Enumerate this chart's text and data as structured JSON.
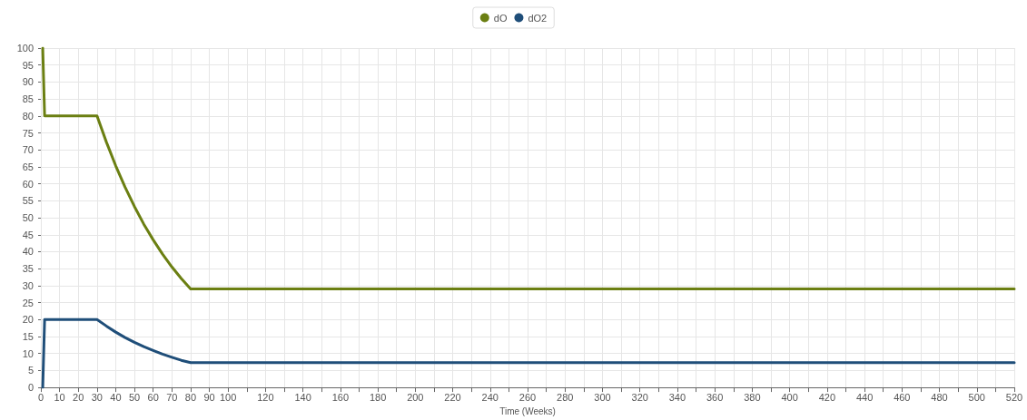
{
  "chart_data": {
    "type": "line",
    "xlabel": "Time (Weeks)",
    "xlim": [
      0,
      520
    ],
    "xticks": [
      0,
      10,
      20,
      30,
      40,
      50,
      60,
      70,
      80,
      90,
      100,
      {
        "value": 110,
        "label": null
      },
      120,
      {
        "value": 130,
        "label": null
      },
      140,
      {
        "value": 150,
        "label": null
      },
      160,
      {
        "value": 170,
        "label": null
      },
      180,
      {
        "value": 190,
        "label": null
      },
      200,
      {
        "value": 210,
        "label": null
      },
      220,
      {
        "value": 230,
        "label": null
      },
      240,
      {
        "value": 250,
        "label": null
      },
      260,
      {
        "value": 270,
        "label": null
      },
      280,
      {
        "value": 290,
        "label": null
      },
      300,
      {
        "value": 310,
        "label": null
      },
      320,
      {
        "value": 330,
        "label": null
      },
      340,
      {
        "value": 350,
        "label": null
      },
      360,
      {
        "value": 370,
        "label": null
      },
      380,
      {
        "value": 390,
        "label": null
      },
      400,
      {
        "value": 410,
        "label": null
      },
      420,
      {
        "value": 430,
        "label": null
      },
      440,
      {
        "value": 450,
        "label": null
      },
      460,
      {
        "value": 470,
        "label": null
      },
      480,
      {
        "value": 490,
        "label": null
      },
      500,
      {
        "value": 510,
        "label": null
      },
      520
    ],
    "ylim": [
      0,
      100
    ],
    "yticks": [
      0,
      5,
      10,
      15,
      20,
      25,
      30,
      35,
      40,
      45,
      50,
      55,
      60,
      65,
      70,
      75,
      80,
      85,
      90,
      95,
      100
    ],
    "grid": true,
    "legend": "top",
    "marker": "none",
    "line_style": "solid",
    "series": [
      {
        "name": "dO",
        "color": "#6b7f12",
        "x": [
          1,
          2,
          30,
          35,
          40,
          45,
          50,
          55,
          60,
          65,
          70,
          75,
          80,
          520
        ],
        "values": [
          100,
          80,
          80,
          72.3,
          65.3,
          59,
          53.3,
          48.1,
          43.5,
          39.3,
          35.5,
          32.1,
          29,
          29
        ]
      },
      {
        "name": "dO2",
        "color": "#1f4e79",
        "x": [
          1,
          2,
          30,
          35,
          40,
          45,
          50,
          55,
          60,
          65,
          70,
          75,
          80,
          520
        ],
        "values": [
          0,
          20,
          20,
          18.1,
          16.3,
          14.7,
          13.3,
          12,
          10.9,
          9.8,
          8.9,
          8,
          7.3,
          7.3
        ]
      }
    ]
  }
}
